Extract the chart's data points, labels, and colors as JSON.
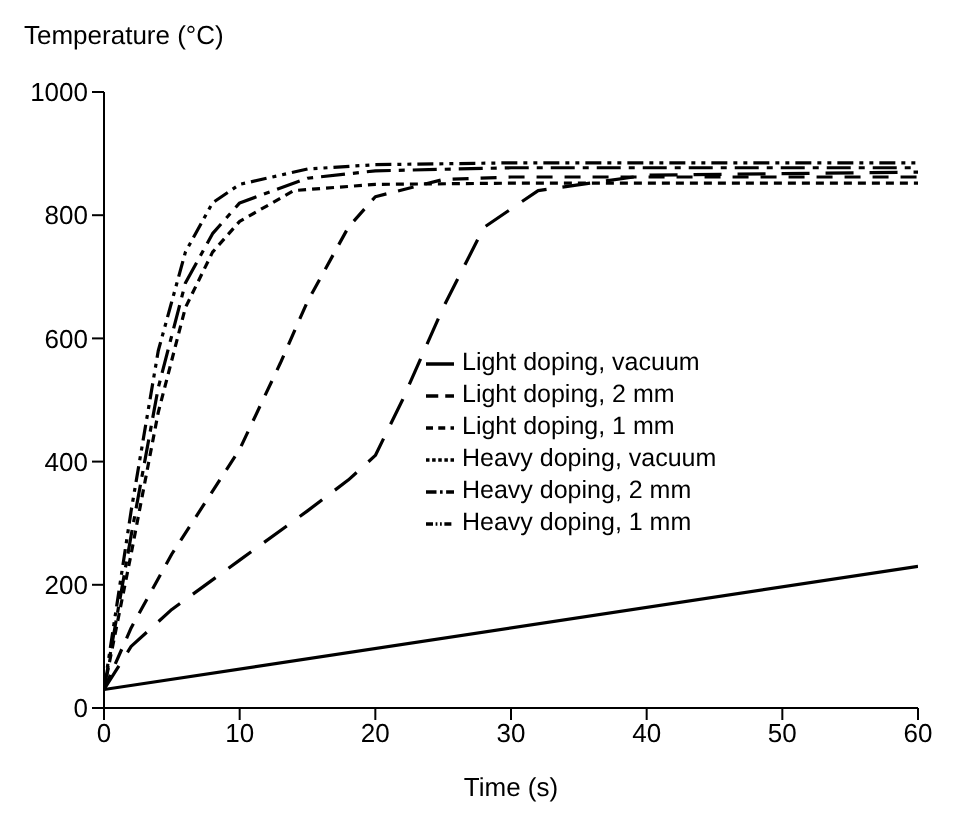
{
  "chart_data": {
    "type": "line",
    "xlabel": "Time (s)",
    "ylabel": "Temperature (°C)",
    "xlim": [
      0,
      60
    ],
    "ylim": [
      0,
      1000
    ],
    "xticks": [
      0,
      10,
      20,
      30,
      40,
      50,
      60
    ],
    "yticks": [
      0,
      200,
      400,
      600,
      800,
      1000
    ],
    "grid": false,
    "legend": "right",
    "marker": "none",
    "series": [
      {
        "name": "Light doping, vacuum",
        "color": "#000000",
        "line_style": "solid",
        "x": [
          0,
          60
        ],
        "values": [
          30,
          230
        ]
      },
      {
        "name": "Light doping, 2 mm",
        "color": "#000000",
        "line_style": "dashed",
        "x": [
          0,
          2,
          5,
          10,
          15,
          18,
          20,
          22,
          25,
          28,
          32,
          40,
          60
        ],
        "values": [
          30,
          100,
          160,
          240,
          320,
          370,
          410,
          500,
          650,
          780,
          840,
          865,
          870
        ]
      },
      {
        "name": "Light doping, 1 mm",
        "color": "#000000",
        "line_style": "dashed",
        "x": [
          0,
          2,
          5,
          10,
          13,
          15,
          18,
          20,
          25,
          30,
          60
        ],
        "values": [
          30,
          130,
          250,
          420,
          560,
          660,
          780,
          830,
          858,
          862,
          862
        ]
      },
      {
        "name": "Heavy doping, vacuum",
        "color": "#000000",
        "line_style": "dotted",
        "x": [
          0,
          2,
          4,
          6,
          8,
          10,
          14,
          20,
          30,
          60
        ],
        "values": [
          30,
          250,
          480,
          650,
          740,
          790,
          840,
          850,
          852,
          852
        ]
      },
      {
        "name": "Heavy doping, 2 mm",
        "color": "#000000",
        "line_style": "dashed",
        "x": [
          0,
          2,
          4,
          6,
          8,
          10,
          15,
          20,
          30,
          60
        ],
        "values": [
          30,
          280,
          520,
          690,
          770,
          820,
          860,
          872,
          877,
          877
        ]
      },
      {
        "name": "Heavy doping, 1 mm",
        "color": "#000000",
        "line_style": "dotted",
        "x": [
          0,
          2,
          4,
          6,
          8,
          10,
          15,
          20,
          30,
          60
        ],
        "values": [
          30,
          320,
          580,
          740,
          820,
          850,
          875,
          882,
          885,
          885
        ]
      }
    ]
  }
}
